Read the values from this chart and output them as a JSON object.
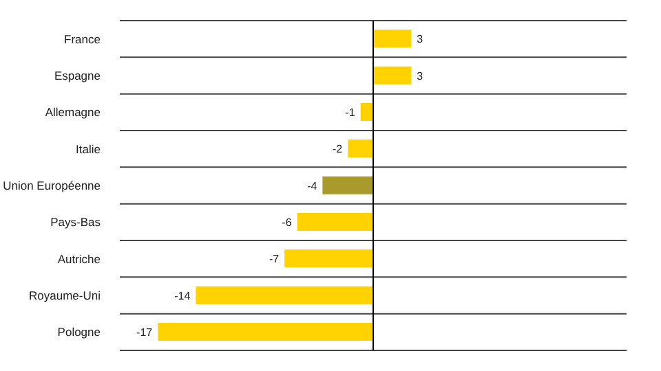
{
  "chart_data": {
    "type": "bar",
    "orientation": "horizontal",
    "categories": [
      "France",
      "Espagne",
      "Allemagne",
      "Italie",
      "Union Européenne",
      "Pays-Bas",
      "Autriche",
      "Royaume-Uni",
      "Pologne"
    ],
    "values": [
      3,
      3,
      -1,
      -2,
      -4,
      -6,
      -7,
      -14,
      -17
    ],
    "colors": [
      "#ffd200",
      "#ffd200",
      "#ffd200",
      "#ffd200",
      "#a89a2c",
      "#ffd200",
      "#ffd200",
      "#ffd200",
      "#ffd200"
    ],
    "xlim": [
      -20,
      20
    ],
    "tick_labels": "y",
    "grid": "y",
    "data_labels": true
  }
}
